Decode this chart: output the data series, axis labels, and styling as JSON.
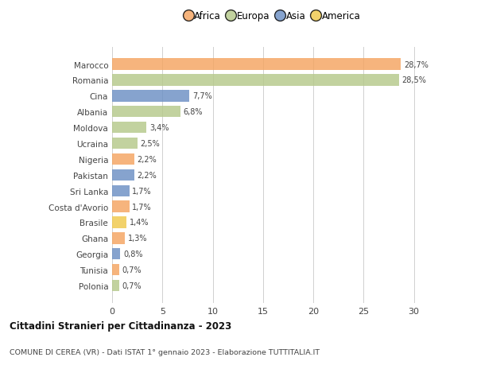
{
  "categories": [
    "Marocco",
    "Romania",
    "Cina",
    "Albania",
    "Moldova",
    "Ucraina",
    "Nigeria",
    "Pakistan",
    "Sri Lanka",
    "Costa d'Avorio",
    "Brasile",
    "Ghana",
    "Georgia",
    "Tunisia",
    "Polonia"
  ],
  "values": [
    28.7,
    28.5,
    7.7,
    6.8,
    3.4,
    2.5,
    2.2,
    2.2,
    1.7,
    1.7,
    1.4,
    1.3,
    0.8,
    0.7,
    0.7
  ],
  "labels": [
    "28,7%",
    "28,5%",
    "7,7%",
    "6,8%",
    "3,4%",
    "2,5%",
    "2,2%",
    "2,2%",
    "1,7%",
    "1,7%",
    "1,4%",
    "1,3%",
    "0,8%",
    "0,7%",
    "0,7%"
  ],
  "colors": [
    "#F4A460",
    "#B5C98A",
    "#6B8FC4",
    "#B5C98A",
    "#B5C98A",
    "#B5C98A",
    "#F4A460",
    "#6B8FC4",
    "#6B8FC4",
    "#F4A460",
    "#F0C84A",
    "#F4A460",
    "#6B8FC4",
    "#F4A460",
    "#B5C98A"
  ],
  "continent_colors": {
    "Africa": "#F4A460",
    "Europa": "#B5C98A",
    "Asia": "#6B8FC4",
    "America": "#F0C84A"
  },
  "legend_order": [
    "Africa",
    "Europa",
    "Asia",
    "America"
  ],
  "title": "Cittadini Stranieri per Cittadinanza - 2023",
  "subtitle": "COMUNE DI CEREA (VR) - Dati ISTAT 1° gennaio 2023 - Elaborazione TUTTITALIA.IT",
  "xlim": [
    0,
    32
  ],
  "xticks": [
    0,
    5,
    10,
    15,
    20,
    25,
    30
  ],
  "background_color": "#ffffff",
  "grid_color": "#d0d0d0",
  "bar_height": 0.72
}
